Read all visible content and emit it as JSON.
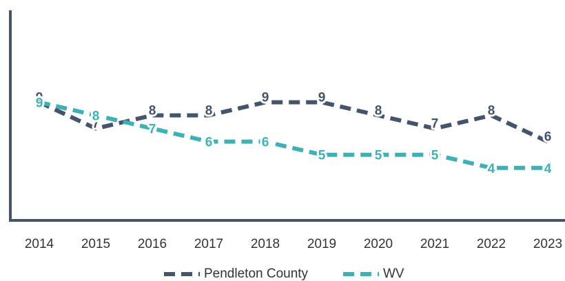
{
  "chart_data": {
    "type": "line",
    "categories": [
      "2014",
      "2015",
      "2016",
      "2017",
      "2018",
      "2019",
      "2020",
      "2021",
      "2022",
      "2023"
    ],
    "series": [
      {
        "name": "Pendleton County",
        "color": "#44546a",
        "values": [
          9,
          7,
          8,
          8,
          9,
          9,
          8,
          7,
          8,
          6
        ]
      },
      {
        "name": "WV",
        "color": "#3fb1b5",
        "values": [
          9,
          8,
          7,
          6,
          6,
          5,
          5,
          5,
          4,
          4
        ]
      }
    ],
    "ylim": [
      0,
      16
    ],
    "legend": "bottom"
  }
}
